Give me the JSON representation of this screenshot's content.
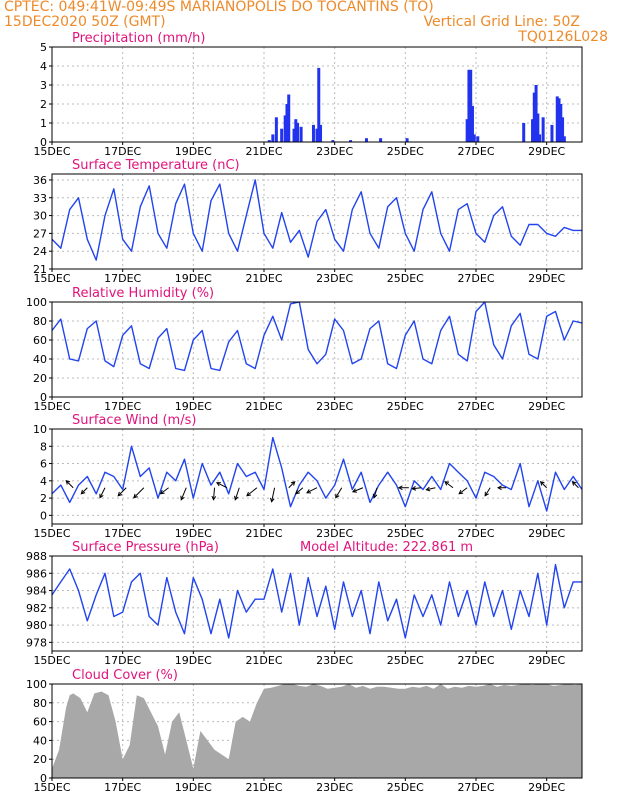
{
  "header": {
    "line1": "CPTEC:  049:41W-09:49S  MARIANOPOLIS DO TOCANTINS (TO)",
    "line2": "15DEC2020 50Z (GMT)",
    "grid_note": "Vertical Grid Line: 50Z",
    "code": "TQ0126L028"
  },
  "colors": {
    "title": "#e0147c",
    "header": "#ee8a2a",
    "line": "#2244ee",
    "bar": "#2233ee",
    "cloud": "#a8a8a8",
    "grid": "#bbbbbb"
  },
  "chart_data": [
    {
      "type": "bar",
      "title": "Precipitation (mm/h)",
      "ylim": [
        0,
        5
      ],
      "yticks": [
        0,
        1,
        2,
        3,
        4,
        5
      ],
      "xlim": [
        0,
        15
      ],
      "xticks": [
        0,
        2,
        4,
        6,
        8,
        10,
        12,
        14
      ],
      "xticklabels": [
        "15DEC",
        "17DEC",
        "19DEC",
        "21DEC",
        "23DEC",
        "25DEC",
        "27DEC",
        "29DEC"
      ],
      "grid": "dashed",
      "series": [
        {
          "x": [
            6.15,
            6.25,
            6.35,
            6.5,
            6.6,
            6.65,
            6.7,
            6.85,
            6.9,
            6.95,
            7.05,
            7.4,
            7.5,
            7.55,
            7.6,
            7.95,
            8.45,
            8.9,
            9.3,
            10.05,
            11.75,
            11.8,
            11.85,
            11.9,
            11.95,
            12.05,
            13.35,
            13.6,
            13.65,
            13.7,
            13.75,
            13.8,
            13.9,
            14.15,
            14.3,
            14.35,
            14.4,
            14.45,
            14.5
          ],
          "values": [
            0.1,
            0.4,
            1.3,
            0.7,
            1.4,
            2.0,
            2.5,
            0.7,
            1.2,
            1.0,
            0.8,
            0.9,
            0.7,
            3.9,
            0.9,
            0.1,
            0.1,
            0.2,
            0.2,
            0.2,
            1.2,
            3.8,
            3.8,
            1.9,
            0.4,
            0.3,
            1.0,
            1.2,
            2.6,
            3.0,
            1.5,
            0.4,
            1.3,
            0.9,
            2.4,
            2.3,
            2.0,
            1.3,
            0.3
          ]
        }
      ]
    },
    {
      "type": "line",
      "title": "Surface Temperature (nC)",
      "ylim": [
        21,
        37
      ],
      "yticks": [
        21,
        24,
        27,
        30,
        33,
        36
      ],
      "xlim": [
        0,
        15
      ],
      "xticks": [
        0,
        2,
        4,
        6,
        8,
        10,
        12,
        14
      ],
      "xticklabels": [
        "15DEC",
        "17DEC",
        "19DEC",
        "21DEC",
        "23DEC",
        "25DEC",
        "27DEC",
        "29DEC"
      ],
      "grid": "dashed",
      "series": [
        {
          "x": [
            0,
            0.25,
            0.5,
            0.75,
            1.0,
            1.25,
            1.5,
            1.75,
            2.0,
            2.25,
            2.5,
            2.75,
            3.0,
            3.25,
            3.5,
            3.75,
            4.0,
            4.25,
            4.5,
            4.75,
            5.0,
            5.25,
            5.5,
            5.75,
            6.0,
            6.25,
            6.5,
            6.75,
            7.0,
            7.25,
            7.5,
            7.75,
            8.0,
            8.25,
            8.5,
            8.75,
            9.0,
            9.25,
            9.5,
            9.75,
            10.0,
            10.25,
            10.5,
            10.75,
            11.0,
            11.25,
            11.5,
            11.75,
            12.0,
            12.25,
            12.5,
            12.75,
            13.0,
            13.25,
            13.5,
            13.75,
            14.0,
            14.25,
            14.5,
            14.75,
            15.0
          ],
          "values": [
            26,
            24.5,
            31,
            33,
            26,
            22.5,
            30,
            34.5,
            26,
            24,
            31.5,
            35,
            27,
            24.5,
            32,
            35.3,
            27,
            24,
            32.5,
            35.3,
            27,
            24,
            30,
            36,
            27,
            24.5,
            30.5,
            25.5,
            27.5,
            23,
            29,
            31,
            26,
            24,
            31,
            34,
            27,
            24.5,
            31.5,
            33,
            27,
            24,
            31,
            34,
            27,
            24,
            31,
            32,
            27,
            25.5,
            30,
            31.5,
            26.5,
            25,
            28.5,
            28.5,
            27,
            26.5,
            28,
            27.5,
            27.5
          ]
        }
      ]
    },
    {
      "type": "line",
      "title": "Relative Humidity (%)",
      "ylim": [
        0,
        100
      ],
      "yticks": [
        0,
        20,
        40,
        60,
        80,
        100
      ],
      "xlim": [
        0,
        15
      ],
      "xticks": [
        0,
        2,
        4,
        6,
        8,
        10,
        12,
        14
      ],
      "xticklabels": [
        "15DEC",
        "17DEC",
        "19DEC",
        "21DEC",
        "23DEC",
        "25DEC",
        "27DEC",
        "29DEC"
      ],
      "grid": "dashed",
      "series": [
        {
          "x": [
            0,
            0.25,
            0.5,
            0.75,
            1.0,
            1.25,
            1.5,
            1.75,
            2.0,
            2.25,
            2.5,
            2.75,
            3.0,
            3.25,
            3.5,
            3.75,
            4.0,
            4.25,
            4.5,
            4.75,
            5.0,
            5.25,
            5.5,
            5.75,
            6.0,
            6.25,
            6.5,
            6.75,
            7.0,
            7.25,
            7.5,
            7.75,
            8.0,
            8.25,
            8.5,
            8.75,
            9.0,
            9.25,
            9.5,
            9.75,
            10.0,
            10.25,
            10.5,
            10.75,
            11.0,
            11.25,
            11.5,
            11.75,
            12.0,
            12.25,
            12.5,
            12.75,
            13.0,
            13.25,
            13.5,
            13.75,
            14.0,
            14.25,
            14.5,
            14.75,
            15.0
          ],
          "values": [
            70,
            82,
            40,
            38,
            72,
            80,
            38,
            32,
            65,
            75,
            35,
            30,
            62,
            72,
            30,
            28,
            60,
            70,
            30,
            28,
            58,
            70,
            35,
            30,
            65,
            85,
            60,
            98,
            100,
            50,
            35,
            45,
            82,
            70,
            35,
            40,
            72,
            80,
            35,
            30,
            65,
            80,
            40,
            35,
            70,
            85,
            45,
            38,
            90,
            100,
            55,
            40,
            75,
            88,
            45,
            40,
            85,
            90,
            60,
            80,
            78
          ]
        }
      ]
    },
    {
      "type": "line",
      "title": "Surface Wind (m/s)",
      "ylim": [
        -1,
        10
      ],
      "yticks": [
        0,
        2,
        4,
        6,
        8,
        10
      ],
      "xlim": [
        0,
        15
      ],
      "xticks": [
        0,
        2,
        4,
        6,
        8,
        10,
        12,
        14
      ],
      "xticklabels": [
        "15DEC",
        "17DEC",
        "19DEC",
        "21DEC",
        "23DEC",
        "25DEC",
        "27DEC",
        "29DEC"
      ],
      "grid": "dashed",
      "series": [
        {
          "x": [
            0,
            0.25,
            0.5,
            0.75,
            1.0,
            1.25,
            1.5,
            1.75,
            2.0,
            2.25,
            2.5,
            2.75,
            3.0,
            3.25,
            3.5,
            3.75,
            4.0,
            4.25,
            4.5,
            4.75,
            5.0,
            5.25,
            5.5,
            5.75,
            6.0,
            6.25,
            6.5,
            6.75,
            7.0,
            7.25,
            7.5,
            7.75,
            8.0,
            8.25,
            8.5,
            8.75,
            9.0,
            9.25,
            9.5,
            9.75,
            10.0,
            10.25,
            10.5,
            10.75,
            11.0,
            11.25,
            11.5,
            11.75,
            12.0,
            12.25,
            12.5,
            12.75,
            13.0,
            13.25,
            13.5,
            13.75,
            14.0,
            14.25,
            14.5,
            14.75,
            15.0
          ],
          "values": [
            2.5,
            3.5,
            1.5,
            3.5,
            4.5,
            2.5,
            5,
            4.5,
            3,
            8,
            4.5,
            5.5,
            2,
            5,
            4,
            6.5,
            2,
            6,
            3.5,
            5,
            2.5,
            6,
            4.5,
            5,
            3,
            9,
            5.5,
            1,
            3.5,
            5,
            4,
            2,
            3.5,
            6.5,
            3,
            5,
            1.5,
            3.5,
            5,
            3.5,
            1,
            4,
            3,
            4.5,
            3,
            6,
            5,
            4,
            2,
            5,
            4.5,
            3.5,
            3,
            6,
            1,
            4,
            0.5,
            5,
            3,
            4.5,
            3
          ]
        }
      ],
      "wind_vectors": [
        {
          "x": 0.6,
          "dx": -7,
          "dy": -7
        },
        {
          "x": 1.0,
          "dx": -6,
          "dy": 6
        },
        {
          "x": 1.5,
          "dx": -5,
          "dy": 10
        },
        {
          "x": 2.1,
          "dx": -8,
          "dy": 8
        },
        {
          "x": 2.6,
          "dx": -10,
          "dy": 10
        },
        {
          "x": 3.3,
          "dx": -8,
          "dy": 6
        },
        {
          "x": 3.8,
          "dx": -5,
          "dy": 12
        },
        {
          "x": 4.6,
          "dx": -1,
          "dy": 12
        },
        {
          "x": 4.95,
          "dx": -10,
          "dy": -5
        },
        {
          "x": 5.3,
          "dx": -4,
          "dy": 12
        },
        {
          "x": 5.8,
          "dx": -10,
          "dy": 8
        },
        {
          "x": 6.3,
          "dx": -3,
          "dy": 14
        },
        {
          "x": 6.7,
          "dx": 6,
          "dy": -6
        },
        {
          "x": 7.1,
          "dx": -7,
          "dy": 6
        },
        {
          "x": 7.5,
          "dx": -10,
          "dy": 5
        },
        {
          "x": 8.2,
          "dx": -6,
          "dy": 10
        },
        {
          "x": 8.8,
          "dx": -10,
          "dy": 4
        },
        {
          "x": 9.2,
          "dx": -3,
          "dy": 10
        },
        {
          "x": 10.1,
          "dx": -10,
          "dy": 0
        },
        {
          "x": 10.45,
          "dx": -9,
          "dy": 1
        },
        {
          "x": 10.85,
          "dx": -9,
          "dy": 2
        },
        {
          "x": 11.35,
          "dx": -8,
          "dy": -6
        },
        {
          "x": 11.75,
          "dx": -8,
          "dy": 6
        },
        {
          "x": 12.4,
          "dx": -5,
          "dy": 8
        },
        {
          "x": 12.85,
          "dx": -8,
          "dy": 0
        },
        {
          "x": 14.0,
          "dx": -6,
          "dy": -6
        },
        {
          "x": 14.9,
          "dx": -6,
          "dy": -6
        }
      ]
    },
    {
      "type": "line",
      "title": "Surface Pressure (hPa)",
      "subtitle": "Model Altitude: 222.861 m",
      "ylim": [
        977,
        988
      ],
      "yticks": [
        978,
        980,
        982,
        984,
        986,
        988
      ],
      "xlim": [
        0,
        15
      ],
      "xticks": [
        0,
        2,
        4,
        6,
        8,
        10,
        12,
        14
      ],
      "xticklabels": [
        "15DEC",
        "17DEC",
        "19DEC",
        "21DEC",
        "23DEC",
        "25DEC",
        "27DEC",
        "29DEC"
      ],
      "grid": "dashed",
      "series": [
        {
          "x": [
            0,
            0.25,
            0.5,
            0.75,
            1.0,
            1.25,
            1.5,
            1.75,
            2.0,
            2.25,
            2.5,
            2.75,
            3.0,
            3.25,
            3.5,
            3.75,
            4.0,
            4.25,
            4.5,
            4.75,
            5.0,
            5.25,
            5.5,
            5.75,
            6.0,
            6.25,
            6.5,
            6.75,
            7.0,
            7.25,
            7.5,
            7.75,
            8.0,
            8.25,
            8.5,
            8.75,
            9.0,
            9.25,
            9.5,
            9.75,
            10.0,
            10.25,
            10.5,
            10.75,
            11.0,
            11.25,
            11.5,
            11.75,
            12.0,
            12.25,
            12.5,
            12.75,
            13.0,
            13.25,
            13.5,
            13.75,
            14.0,
            14.25,
            14.5,
            14.75,
            15.0
          ],
          "values": [
            983.5,
            985,
            986.5,
            984,
            980.5,
            983.5,
            986,
            981,
            981.5,
            985,
            986,
            981,
            980,
            985.5,
            981.5,
            979,
            985.5,
            983,
            979,
            983,
            978.5,
            984,
            981.5,
            983,
            983,
            986.5,
            981.5,
            986,
            980,
            985.5,
            981,
            984.5,
            979.5,
            985,
            981,
            984,
            979,
            985,
            980.5,
            983,
            978.5,
            983.5,
            981,
            983.5,
            980,
            985,
            981,
            984,
            980,
            985,
            981,
            984,
            979.5,
            984,
            981,
            986,
            980,
            987,
            982,
            985,
            985
          ]
        }
      ]
    },
    {
      "type": "area",
      "title": "Cloud Cover (%)",
      "ylim": [
        0,
        100
      ],
      "yticks": [
        0,
        20,
        40,
        60,
        80,
        100
      ],
      "xlim": [
        0,
        15
      ],
      "xticks": [
        0,
        2,
        4,
        6,
        8,
        10,
        12,
        14
      ],
      "xticklabels": [
        "15DEC",
        "17DEC",
        "19DEC",
        "21DEC",
        "23DEC",
        "25DEC",
        "27DEC",
        "29DEC"
      ],
      "grid": "dashed",
      "series": [
        {
          "x": [
            0,
            0.2,
            0.4,
            0.5,
            0.6,
            0.8,
            1.0,
            1.2,
            1.4,
            1.6,
            1.8,
            2.0,
            2.2,
            2.4,
            2.6,
            2.8,
            3.0,
            3.2,
            3.4,
            3.6,
            3.8,
            4.0,
            4.2,
            4.4,
            4.6,
            4.8,
            5.0,
            5.2,
            5.4,
            5.6,
            5.8,
            6.0,
            6.2,
            6.4,
            6.6,
            6.8,
            7.0,
            7.2,
            7.4,
            7.6,
            7.8,
            8.0,
            8.2,
            8.4,
            8.6,
            8.8,
            9.0,
            9.2,
            9.4,
            9.6,
            9.8,
            10.0,
            10.2,
            10.4,
            10.6,
            10.8,
            11.0,
            11.2,
            11.4,
            11.6,
            11.8,
            12.0,
            12.2,
            12.4,
            12.6,
            12.8,
            13.0,
            13.2,
            13.4,
            13.6,
            13.8,
            14.0,
            14.2,
            14.4,
            14.6,
            14.8,
            15.0
          ],
          "values": [
            10,
            30,
            75,
            88,
            90,
            85,
            70,
            90,
            92,
            88,
            60,
            20,
            35,
            88,
            85,
            70,
            55,
            25,
            60,
            70,
            40,
            10,
            50,
            40,
            30,
            25,
            20,
            60,
            65,
            60,
            80,
            95,
            96,
            98,
            100,
            100,
            98,
            97,
            100,
            98,
            95,
            96,
            97,
            100,
            96,
            98,
            95,
            97,
            97,
            96,
            95,
            95,
            97,
            96,
            98,
            95,
            100,
            95,
            97,
            96,
            98,
            97,
            98,
            100,
            97,
            99,
            98,
            99,
            100,
            99,
            100,
            100,
            98,
            99,
            100,
            99,
            100
          ]
        }
      ]
    }
  ]
}
